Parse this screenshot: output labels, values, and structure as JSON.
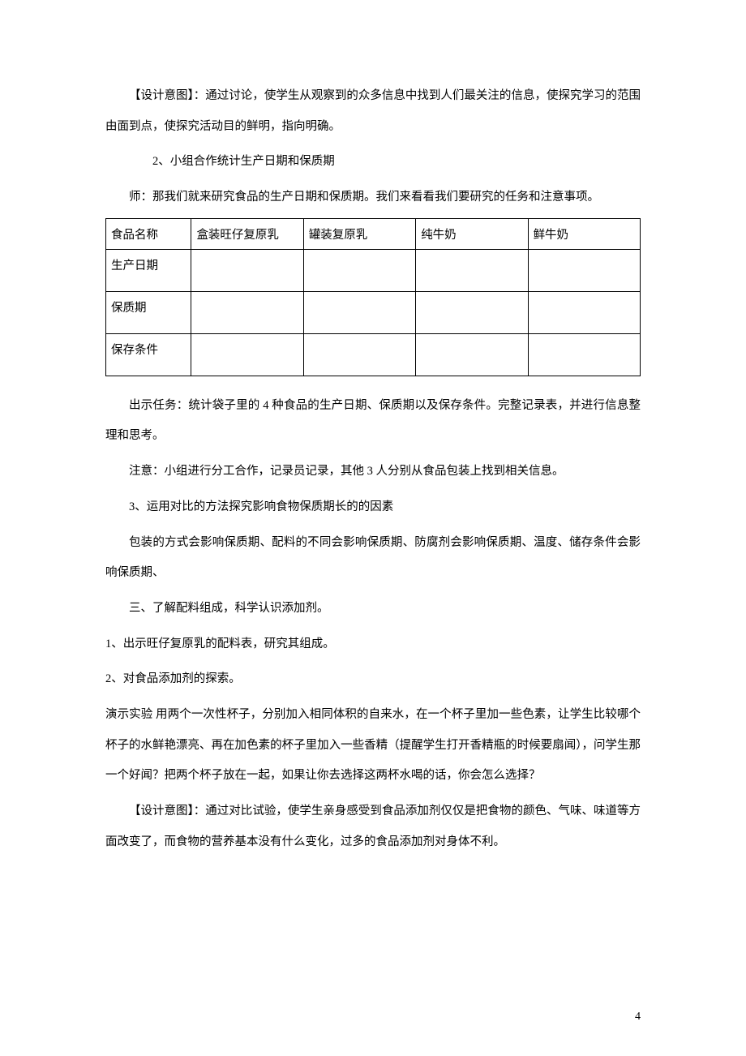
{
  "paragraphs": {
    "p1": "【设计意图】：通过讨论，使学生从观察到的众多信息中找到人们最关注的信息，使探究学习的范围由面到点，使探究活动目的鲜明，指向明确。",
    "p2": "2、小组合作统计生产日期和保质期",
    "p3": "师：那我们就来研究食品的生产日期和保质期。我们来看看我们要研究的任务和注意事项。",
    "p4": "出示任务：统计袋子里的 4 种食品的生产日期、保质期以及保存条件。完整记录表，并进行信息整理和思考。",
    "p5": "注意：小组进行分工合作，记录员记录，其他 3 人分别从食品包装上找到相关信息。",
    "p6": "3、运用对比的方法探究影响食物保质期长的的因素",
    "p7": "包装的方式会影响保质期、配料的不同会影响保质期、防腐剂会影响保质期、温度、储存条件会影响保质期、",
    "p8": "三、了解配料组成，科学认识添加剂。",
    "p9": "1、出示旺仔复原乳的配料表，研究其组成。",
    "p10": "2、对食品添加剂的探索。",
    "p11": "演示实验 用两个一次性杯子，分别加入相同体积的自来水，在一个杯子里加一些色素，让学生比较哪个杯子的水鲜艳漂亮、再在加色素的杯子里加入一些香精（提醒学生打开香精瓶的时候要扇闻），问学生那一个好闻？把两个杯子放在一起，如果让你去选择这两杯水喝的话，你会怎么选择？",
    "p12": "【设计意图】：通过对比试验，使学生亲身感受到食品添加剂仅仅是把食物的颜色、气味、味道等方面改变了，而食物的营养基本没有什么变化，过多的食品添加剂对身体不利。"
  },
  "table": {
    "headers": [
      "食品名称",
      "盒装旺仔复原乳",
      "罐装复原乳",
      "纯牛奶",
      "鲜牛奶"
    ],
    "rowLabels": [
      "生产日期",
      "保质期",
      "保存条件"
    ]
  },
  "pageNumber": "4"
}
